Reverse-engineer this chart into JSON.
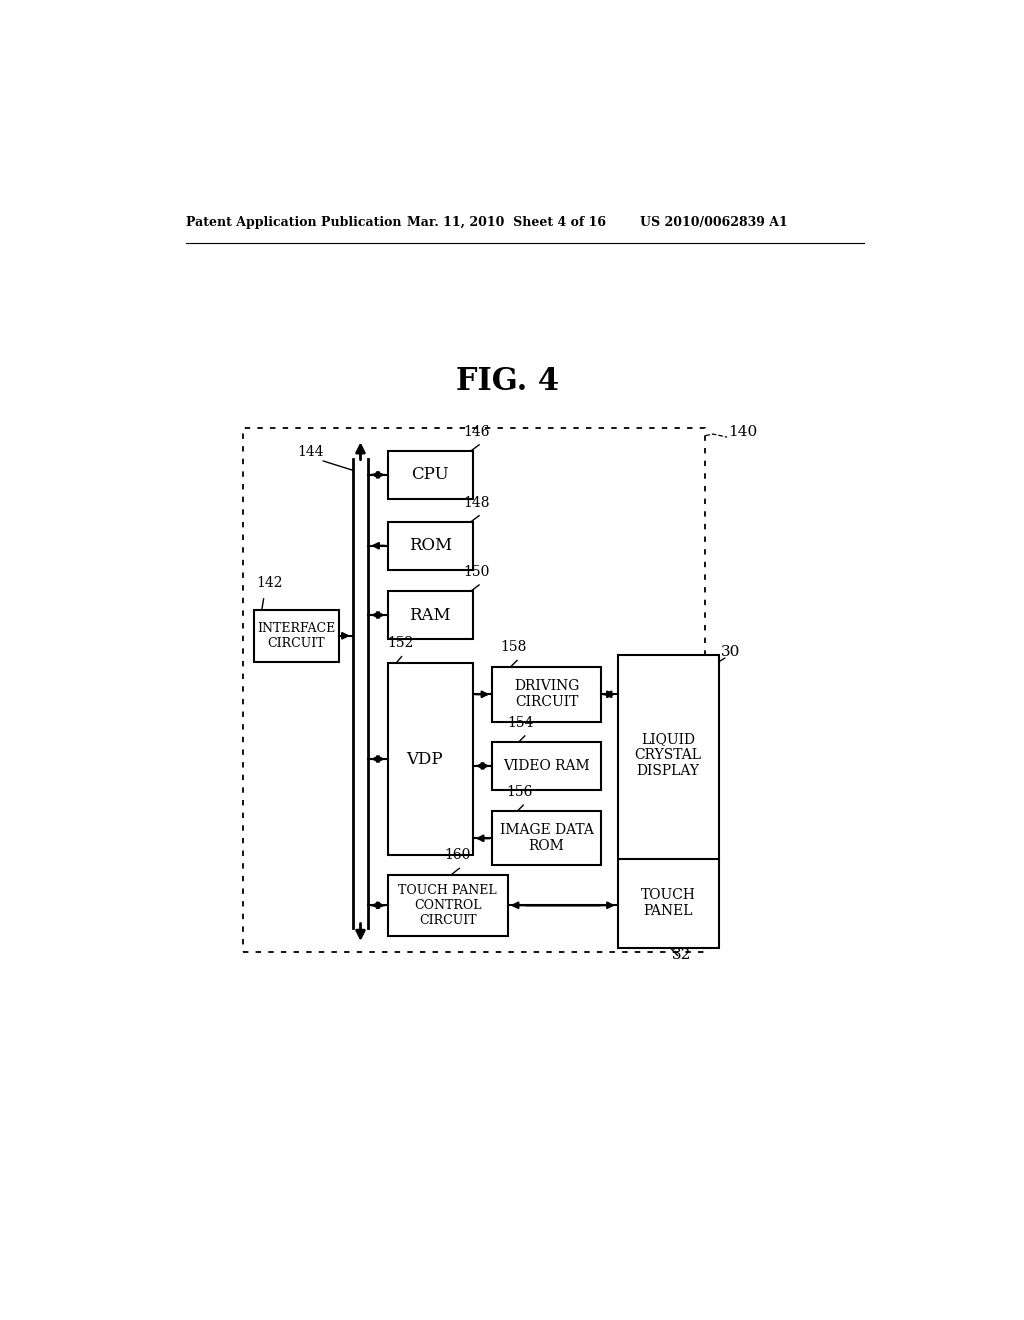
{
  "header_left": "Patent Application Publication",
  "header_mid": "Mar. 11, 2010  Sheet 4 of 16",
  "header_right": "US 2010/0062839 A1",
  "fig_label": "FIG. 4",
  "label_140": "140",
  "label_144": "144",
  "label_142": "142",
  "label_146": "146",
  "label_148": "148",
  "label_150": "150",
  "label_152": "152",
  "label_154": "154",
  "label_156": "156",
  "label_158": "158",
  "label_160": "160",
  "label_30": "30",
  "label_32": "32",
  "box_cpu": "CPU",
  "box_rom": "ROM",
  "box_ram": "RAM",
  "box_vdp": "VDP",
  "box_driving": "DRIVING\nCIRCUIT",
  "box_videoram": "VIDEO RAM",
  "box_imagedata": "IMAGE DATA\nROM",
  "box_touchpanel": "TOUCH PANEL\nCONTROL\nCIRCUIT",
  "box_interface": "INTERFACE\nCIRCUIT",
  "box_lcd": "LIQUID\nCRYSTAL\nDISPLAY",
  "box_tp": "TOUCH\nPANEL",
  "bg_color": "#ffffff"
}
